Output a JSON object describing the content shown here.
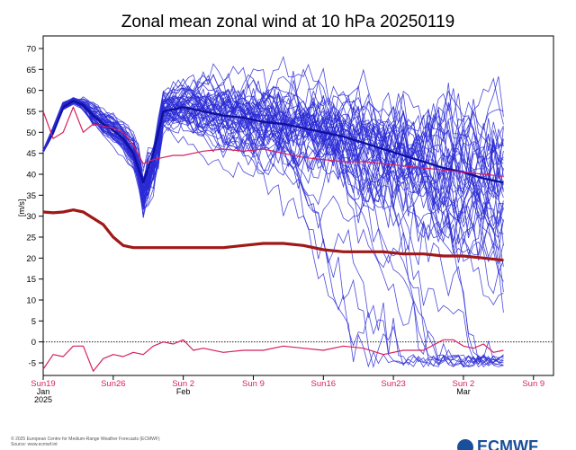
{
  "chart_data": {
    "type": "line",
    "title": "Zonal mean zonal wind at 10 hPa 20250119",
    "ylabel": "[m/s]",
    "xlabel": "",
    "ylim": [
      -8,
      73
    ],
    "xlim": [
      0,
      51
    ],
    "yticks": [
      -5,
      0,
      5,
      10,
      15,
      20,
      25,
      30,
      35,
      40,
      45,
      50,
      55,
      60,
      65,
      70
    ],
    "xticks": [
      {
        "day": 0,
        "label": "Sun19",
        "sub": "Jan",
        "sub2": "2025"
      },
      {
        "day": 7,
        "label": "Sun26",
        "sub": "",
        "sub2": ""
      },
      {
        "day": 14,
        "label": "Sun 2",
        "sub": "Feb",
        "sub2": ""
      },
      {
        "day": 21,
        "label": "Sun 9",
        "sub": "",
        "sub2": ""
      },
      {
        "day": 28,
        "label": "Sun16",
        "sub": "",
        "sub2": ""
      },
      {
        "day": 35,
        "label": "Sun23",
        "sub": "",
        "sub2": ""
      },
      {
        "day": 42,
        "label": "Sun 2",
        "sub": "Mar",
        "sub2": ""
      },
      {
        "day": 49,
        "label": "Sun 9",
        "sub": "",
        "sub2": ""
      }
    ],
    "zero_line": 0,
    "ensemble": {
      "name": "Ensemble members",
      "color": "#2a2ad6",
      "count": 51,
      "forecast_start_day": 0,
      "forecast_end_day": 46
    },
    "series": [
      {
        "name": "Ensemble mean",
        "color": "#1010a0",
        "x": [
          0,
          1,
          2,
          3,
          4,
          5,
          6,
          7,
          8,
          9,
          10,
          11,
          12,
          14,
          16,
          18,
          20,
          22,
          24,
          26,
          28,
          30,
          32,
          34,
          36,
          38,
          40,
          42,
          44,
          46
        ],
        "values": [
          45.5,
          50,
          56,
          57.5,
          56.5,
          54,
          52,
          50.5,
          48.5,
          45,
          38,
          45,
          55,
          56,
          55,
          54,
          53.5,
          52.5,
          52,
          51,
          50,
          49,
          47.5,
          46,
          44.5,
          43,
          41.5,
          40.5,
          39,
          38
        ]
      },
      {
        "name": "Analysis / recent observations",
        "color": "#2a2ad6",
        "x": [
          0,
          1,
          2,
          3
        ],
        "values": [
          45.5,
          51,
          57,
          58
        ]
      },
      {
        "name": "Climatological mean",
        "color": "#d81f5c",
        "x": [
          0,
          1,
          2,
          3,
          4,
          5,
          6,
          7,
          8,
          9,
          10,
          11,
          12,
          13,
          14,
          16,
          18,
          20,
          22,
          24,
          26,
          28,
          30,
          32,
          34,
          36,
          38,
          40,
          42,
          44,
          46
        ],
        "values": [
          55,
          48.5,
          50,
          56,
          50,
          52,
          51.5,
          51,
          50,
          47,
          42.5,
          43.5,
          44,
          44.5,
          44.5,
          45.5,
          46,
          45.5,
          46,
          45,
          44,
          43.5,
          43,
          43,
          42.5,
          42,
          41.5,
          41,
          40.5,
          40,
          39.5
        ]
      },
      {
        "name": "Climatological mean (thick)",
        "color": "#a01818",
        "x": [
          0,
          1,
          2,
          3,
          4,
          5,
          6,
          7,
          8,
          9,
          10,
          11,
          12,
          14,
          16,
          18,
          20,
          22,
          24,
          26,
          28,
          30,
          32,
          34,
          36,
          38,
          40,
          42,
          44,
          46
        ],
        "values": [
          31,
          30.8,
          31,
          31.5,
          31,
          29.5,
          28,
          25,
          23,
          22.5,
          22.5,
          22.5,
          22.5,
          22.5,
          22.5,
          22.5,
          23,
          23.5,
          23.5,
          23,
          22,
          21.5,
          21.5,
          21.5,
          21,
          21,
          20.5,
          20.5,
          20,
          19.5
        ]
      },
      {
        "name": "Climatological minimum",
        "color": "#d81f5c",
        "x": [
          0,
          1,
          2,
          3,
          4,
          5,
          6,
          7,
          8,
          9,
          10,
          11,
          12,
          13,
          14,
          15,
          16,
          18,
          20,
          22,
          24,
          26,
          28,
          30,
          32,
          34,
          36,
          38,
          40,
          41,
          42,
          43,
          44,
          45,
          46
        ],
        "values": [
          -6.5,
          -3,
          -3.5,
          -1,
          -1,
          -7,
          -4,
          -3,
          -3.5,
          -2.5,
          -3,
          -1,
          0,
          -0.5,
          0.5,
          -2,
          -1.5,
          -2.5,
          -2,
          -2,
          -1,
          -1.5,
          -2,
          -1,
          -1.5,
          -3,
          -2,
          -2,
          0.5,
          0.5,
          -1,
          -1.5,
          -0.5,
          -2.5,
          -2
        ]
      }
    ]
  },
  "footer": {
    "copyright_line1": "© 2025 European Centre for Medium-Range Weather Forecasts (ECMWF)",
    "copyright_line2": "Source: www.ecmwf.int",
    "logo_text": "ECMWF"
  }
}
